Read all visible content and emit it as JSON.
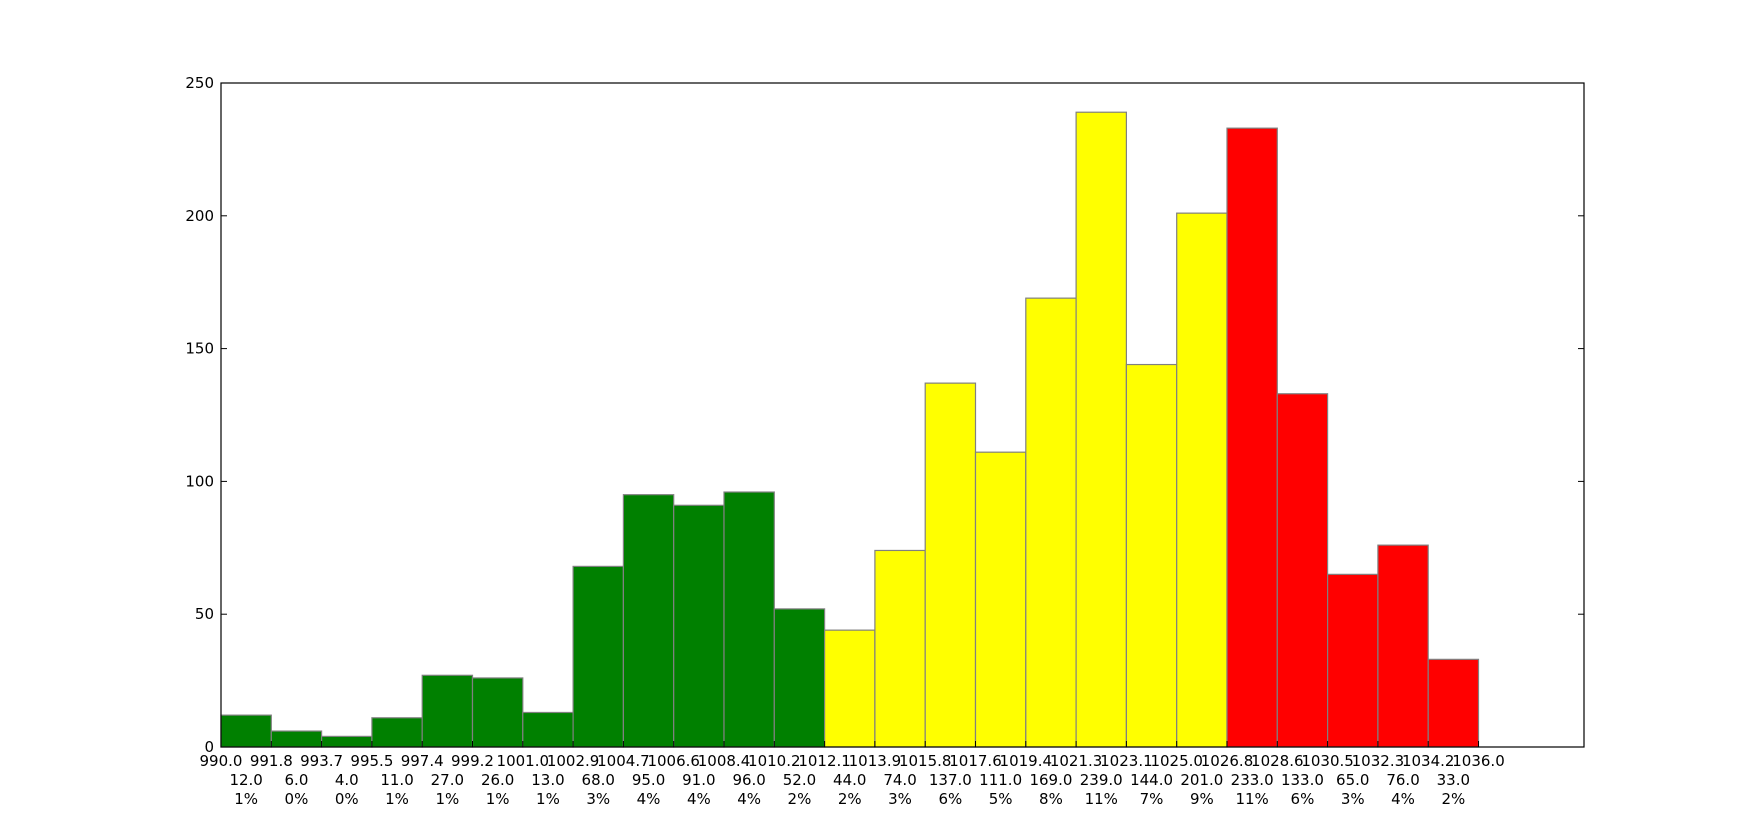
{
  "chart_data": {
    "type": "bar",
    "title": "",
    "xlabel": "",
    "ylabel": "",
    "ylim": [
      0,
      250
    ],
    "yticks": [
      0,
      50,
      100,
      150,
      200,
      250
    ],
    "ytick_labels": [
      "0",
      "50",
      "100",
      "150",
      "200",
      "250"
    ],
    "bin_edges": [
      990.0,
      991.8,
      993.7,
      995.5,
      997.4,
      999.2,
      1001.0,
      1002.9,
      1004.7,
      1006.6,
      1008.4,
      1010.2,
      1012.1,
      1013.9,
      1015.8,
      1017.6,
      1019.4,
      1021.3,
      1023.1,
      1025.0,
      1026.8,
      1028.6,
      1030.5,
      1032.3,
      1034.2,
      1036.0
    ],
    "x_tick_labels": [
      "990.0",
      "991.8",
      "993.7",
      "995.5",
      "997.4",
      "999.2",
      "1001.0",
      "1002.9",
      "1004.7",
      "1006.6",
      "1008.4",
      "1010.2",
      "1012.1",
      "1013.9",
      "1015.8",
      "1017.6",
      "1019.4",
      "1021.3",
      "1023.1",
      "1025.0",
      "1026.8",
      "1028.6",
      "1030.5",
      "1032.3",
      "1034.2",
      "1036.0"
    ],
    "values": [
      12,
      6,
      4,
      11,
      27,
      26,
      13,
      68,
      95,
      91,
      96,
      52,
      44,
      74,
      137,
      111,
      169,
      239,
      144,
      201,
      233,
      133,
      65,
      76,
      33
    ],
    "count_labels": [
      "12.0",
      "6.0",
      "4.0",
      "11.0",
      "27.0",
      "26.0",
      "13.0",
      "68.0",
      "95.0",
      "91.0",
      "96.0",
      "52.0",
      "44.0",
      "74.0",
      "137.0",
      "111.0",
      "169.0",
      "239.0",
      "144.0",
      "201.0",
      "233.0",
      "133.0",
      "65.0",
      "76.0",
      "33.0"
    ],
    "percent_labels": [
      "1%",
      "0%",
      "0%",
      "1%",
      "1%",
      "1%",
      "1%",
      "3%",
      "4%",
      "4%",
      "4%",
      "2%",
      "2%",
      "3%",
      "6%",
      "5%",
      "8%",
      "11%",
      "7%",
      "9%",
      "11%",
      "6%",
      "3%",
      "4%",
      "2%"
    ],
    "bar_colors": [
      "#008000",
      "#008000",
      "#008000",
      "#008000",
      "#008000",
      "#008000",
      "#008000",
      "#008000",
      "#008000",
      "#008000",
      "#008000",
      "#008000",
      "#ffff00",
      "#ffff00",
      "#ffff00",
      "#ffff00",
      "#ffff00",
      "#ffff00",
      "#ffff00",
      "#ffff00",
      "#ff0000",
      "#ff0000",
      "#ff0000",
      "#ff0000",
      "#ff0000"
    ],
    "bar_edge_color": "#808080",
    "grid": false,
    "legend": "none"
  }
}
